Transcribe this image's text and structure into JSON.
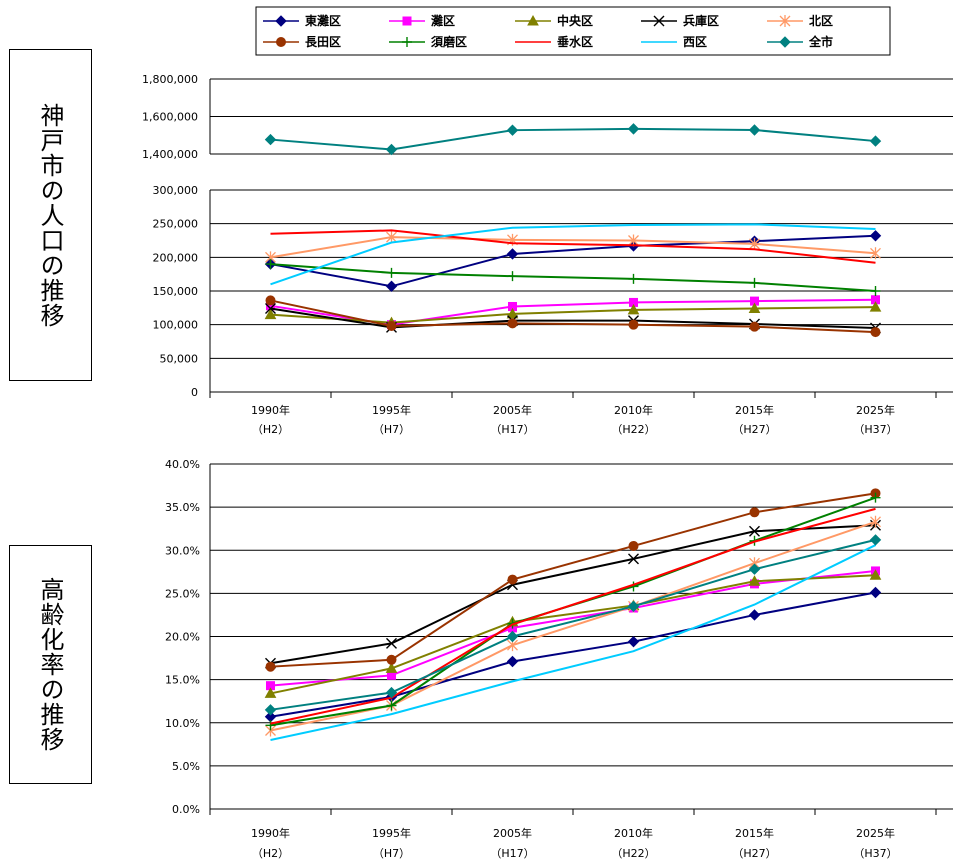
{
  "side_labels": {
    "population": "神戸市の人口の推移",
    "aging": "高齢化率の推移"
  },
  "x_labels": [
    {
      "year": "1990年",
      "era": "（H2）"
    },
    {
      "year": "1995年",
      "era": "（H7）"
    },
    {
      "year": "2005年",
      "era": "（H17）"
    },
    {
      "year": "2010年",
      "era": "（H22）"
    },
    {
      "year": "2015年",
      "era": "（H27）"
    },
    {
      "year": "2025年",
      "era": "（H37）"
    }
  ],
  "legend": {
    "items": [
      {
        "name": "東灘区",
        "color": "#000080",
        "marker": "diamond"
      },
      {
        "name": "灘区",
        "color": "#ff00ff",
        "marker": "square"
      },
      {
        "name": "中央区",
        "color": "#808000",
        "marker": "triangle"
      },
      {
        "name": "兵庫区",
        "color": "#000000",
        "marker": "x"
      },
      {
        "name": "北区",
        "color": "#ff9966",
        "marker": "star"
      },
      {
        "name": "長田区",
        "color": "#993300",
        "marker": "circle"
      },
      {
        "name": "須磨区",
        "color": "#008000",
        "marker": "plus"
      },
      {
        "name": "垂水区",
        "color": "#ff0000",
        "marker": "none"
      },
      {
        "name": "西区",
        "color": "#00ccff",
        "marker": "none"
      },
      {
        "name": "全市",
        "color": "#008080",
        "marker": "diamond"
      }
    ]
  },
  "chart_data": [
    {
      "type": "line",
      "categories": [
        "1990年（H2）",
        "1995年（H7）",
        "2005年（H17）",
        "2010年（H22）",
        "2015年（H27）",
        "2025年（H37）"
      ],
      "title": "神戸市の人口の推移",
      "y_axis": "broken scale: 0–300,000 (lower) and 1,400,000–1,800,000 (upper)",
      "yticks_lower": [
        "0",
        "50,000",
        "100,000",
        "150,000",
        "200,000",
        "250,000",
        "300,000"
      ],
      "yticks_upper": [
        "1,400,000",
        "1,600,000",
        "1,800,000"
      ],
      "ylim_lower": [
        0,
        300000
      ],
      "ylim_upper": [
        1400000,
        1800000
      ],
      "grid": true,
      "legend_position": "top",
      "series": [
        {
          "name": "東灘区",
          "values": [
            190000,
            157000,
            205000,
            217000,
            224000,
            232000
          ]
        },
        {
          "name": "灘区",
          "values": [
            128000,
            100000,
            127000,
            133000,
            135000,
            137000
          ]
        },
        {
          "name": "中央区",
          "values": [
            115000,
            103000,
            116000,
            122000,
            124000,
            126000
          ]
        },
        {
          "name": "兵庫区",
          "values": [
            124000,
            96000,
            106000,
            106000,
            101000,
            95000
          ]
        },
        {
          "name": "北区",
          "values": [
            200000,
            230000,
            226000,
            225000,
            220000,
            206000
          ]
        },
        {
          "name": "長田区",
          "values": [
            136000,
            98000,
            102000,
            100000,
            97000,
            89000
          ]
        },
        {
          "name": "須磨区",
          "values": [
            190000,
            177000,
            172000,
            168000,
            162000,
            150000
          ]
        },
        {
          "name": "垂水区",
          "values": [
            235000,
            240000,
            221000,
            218000,
            212000,
            192000
          ]
        },
        {
          "name": "西区",
          "values": [
            160000,
            222000,
            244000,
            248000,
            249000,
            242000
          ]
        },
        {
          "name": "全市",
          "values": [
            1477000,
            1424000,
            1527000,
            1534000,
            1528000,
            1469000
          ]
        }
      ]
    },
    {
      "type": "line",
      "categories": [
        "1990年（H2）",
        "1995年（H7）",
        "2005年（H17）",
        "2010年（H22）",
        "2015年（H27）",
        "2025年（H37）"
      ],
      "title": "高齢化率の推移",
      "yticks": [
        "0.0%",
        "5.0%",
        "10.0%",
        "15.0%",
        "20.0%",
        "25.0%",
        "30.0%",
        "35.0%",
        "40.0%"
      ],
      "ylim": [
        0,
        40
      ],
      "y_unit": "%",
      "grid": true,
      "series": [
        {
          "name": "東灘区",
          "values": [
            10.7,
            13.0,
            17.1,
            19.4,
            22.5,
            25.1
          ]
        },
        {
          "name": "灘区",
          "values": [
            14.3,
            15.5,
            21.0,
            23.3,
            26.1,
            27.6
          ]
        },
        {
          "name": "中央区",
          "values": [
            13.4,
            16.3,
            21.7,
            23.6,
            26.4,
            27.1
          ]
        },
        {
          "name": "兵庫区",
          "values": [
            16.9,
            19.2,
            26.0,
            29.0,
            32.2,
            32.9
          ]
        },
        {
          "name": "北区",
          "values": [
            9.1,
            12.0,
            19.0,
            23.5,
            28.5,
            33.3
          ]
        },
        {
          "name": "長田区",
          "values": [
            16.5,
            17.3,
            26.6,
            30.5,
            34.4,
            36.6
          ]
        },
        {
          "name": "須磨区",
          "values": [
            9.7,
            12.0,
            21.5,
            25.8,
            31.1,
            36.1
          ]
        },
        {
          "name": "垂水区",
          "values": [
            9.9,
            12.9,
            21.4,
            26.0,
            31.0,
            34.8
          ]
        },
        {
          "name": "西区",
          "values": [
            8.0,
            11.0,
            14.8,
            18.3,
            23.7,
            30.6
          ]
        },
        {
          "name": "全市",
          "values": [
            11.5,
            13.5,
            20.0,
            23.5,
            27.8,
            31.2
          ]
        }
      ]
    }
  ]
}
